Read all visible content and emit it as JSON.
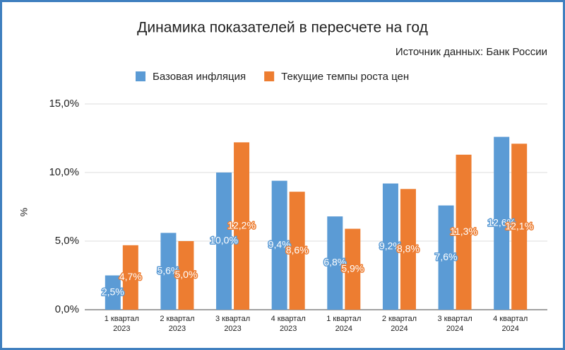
{
  "chart_data": {
    "type": "bar",
    "title": "Динамика показателей в пересчете на год",
    "subtitle": "Источник данных: Банк России",
    "y_label": "%",
    "categories": [
      [
        "1 квартал",
        "2023"
      ],
      [
        "2 квартал",
        "2023"
      ],
      [
        "3 квартал",
        "2023"
      ],
      [
        "4 квартал",
        "2023"
      ],
      [
        "1 квартал",
        "2024"
      ],
      [
        "2 квартал",
        "2024"
      ],
      [
        "3 квартал",
        "2024"
      ],
      [
        "4 квартал",
        "2024"
      ]
    ],
    "series": [
      {
        "name": "Базовая инфляция",
        "color": "#5b9bd5",
        "values": [
          2.5,
          5.6,
          10.0,
          9.4,
          6.8,
          9.2,
          7.6,
          12.6
        ],
        "value_labels": [
          "2,5%",
          "5,6%",
          "10,0%",
          "9,4%",
          "6,8%",
          "9,2%",
          "7,6%",
          "12,6%"
        ]
      },
      {
        "name": "Текущие темпы роста цен",
        "color": "#ed7d31",
        "values": [
          4.7,
          5.0,
          12.2,
          8.6,
          5.9,
          8.8,
          11.3,
          12.1
        ],
        "value_labels": [
          "4,7%",
          "5,0%",
          "12,2%",
          "8,6%",
          "5,9%",
          "8,8%",
          "11,3%",
          "12,1%"
        ]
      }
    ],
    "ylim": [
      0,
      15
    ],
    "yticks": [
      {
        "value": 0,
        "label": "0,0%"
      },
      {
        "value": 5,
        "label": "5,0%"
      },
      {
        "value": 10,
        "label": "10,0%"
      },
      {
        "value": 15,
        "label": "15,0%"
      }
    ],
    "grid": true,
    "legend": "top"
  }
}
